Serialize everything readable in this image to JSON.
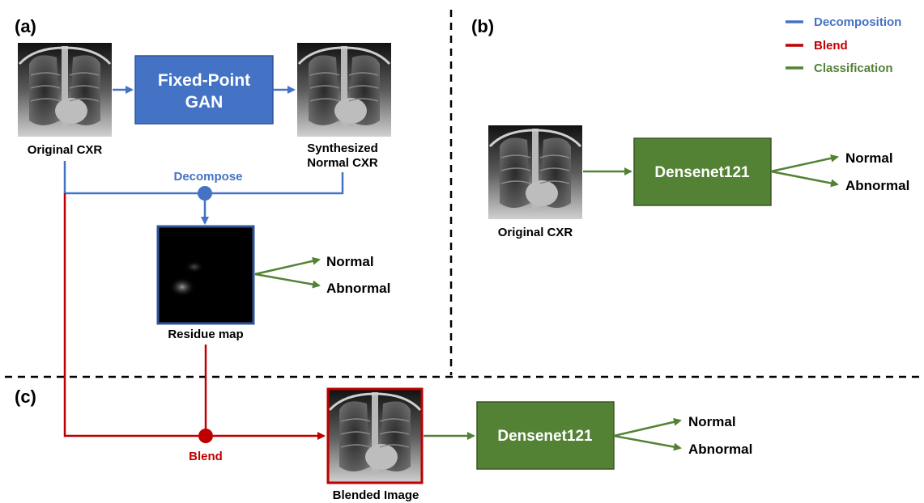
{
  "panels": {
    "a": "(a)",
    "b": "(b)",
    "c": "(c)"
  },
  "legend": [
    {
      "label": "Decomposition",
      "color": "#4472C4"
    },
    {
      "label": "Blend",
      "color": "#C00000"
    },
    {
      "label": "Classification",
      "color": "#548235"
    }
  ],
  "colors": {
    "decomposition": "#4472C4",
    "blend": "#C00000",
    "classification": "#548235"
  },
  "panel_a": {
    "original_caption": "Original CXR",
    "gan_box_line1": "Fixed-Point",
    "gan_box_line2": "GAN",
    "synth_caption_line1": "Synthesized",
    "synth_caption_line2": "Normal CXR",
    "decompose_label": "Decompose",
    "residue_caption": "Residue map",
    "out_normal": "Normal",
    "out_abnormal": "Abnormal"
  },
  "panel_b": {
    "original_caption": "Original CXR",
    "model_box": "Densenet121",
    "out_normal": "Normal",
    "out_abnormal": "Abnormal"
  },
  "panel_c": {
    "blend_label": "Blend",
    "blended_caption": "Blended Image",
    "model_box": "Densenet121",
    "out_normal": "Normal",
    "out_abnormal": "Abnormal"
  }
}
